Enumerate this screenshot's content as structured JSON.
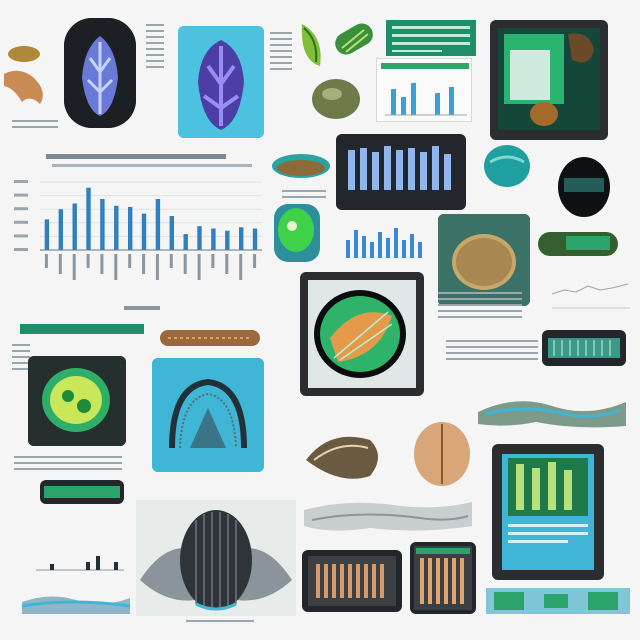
{
  "chart_data": {
    "type": "bar",
    "title": "",
    "xlabel": "",
    "ylabel": "",
    "ylim": [
      0,
      60
    ],
    "categories": [
      "",
      "",
      "",
      "",
      "",
      "",
      "",
      "",
      "",
      "",
      "",
      "",
      "",
      "",
      "",
      ""
    ],
    "values": [
      27,
      36,
      41,
      55,
      45,
      39,
      38,
      32,
      45,
      30,
      14,
      21,
      19,
      17,
      20,
      19
    ],
    "grid": true,
    "legend": "none",
    "bar_color": "#2f7fc1"
  },
  "colors": {
    "background": "#f4f5f4",
    "accent_cyan": "#3fb6d6",
    "accent_green": "#2fa56a",
    "dark_frame": "#23262a",
    "bar_blue": "#2f7fc1"
  }
}
